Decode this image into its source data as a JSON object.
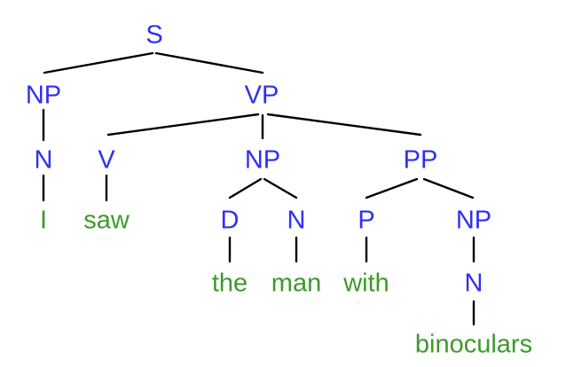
{
  "colors": {
    "category": "#2f2ff2",
    "word": "#3c9a2a",
    "edge": "#000000"
  },
  "tree": {
    "label": "S",
    "children": [
      {
        "label": "NP",
        "children": [
          {
            "label": "N",
            "children": [
              {
                "label": "I"
              }
            ]
          }
        ]
      },
      {
        "label": "VP",
        "children": [
          {
            "label": "V",
            "children": [
              {
                "label": "saw"
              }
            ]
          },
          {
            "label": "NP",
            "children": [
              {
                "label": "D",
                "children": [
                  {
                    "label": "the"
                  }
                ]
              },
              {
                "label": "N",
                "children": [
                  {
                    "label": "man"
                  }
                ]
              }
            ]
          },
          {
            "label": "PP",
            "children": [
              {
                "label": "P",
                "children": [
                  {
                    "label": "with"
                  }
                ]
              },
              {
                "label": "NP",
                "children": [
                  {
                    "label": "N",
                    "children": [
                      {
                        "label": "binoculars"
                      }
                    ]
                  }
                ]
              }
            ]
          }
        ]
      }
    ]
  }
}
